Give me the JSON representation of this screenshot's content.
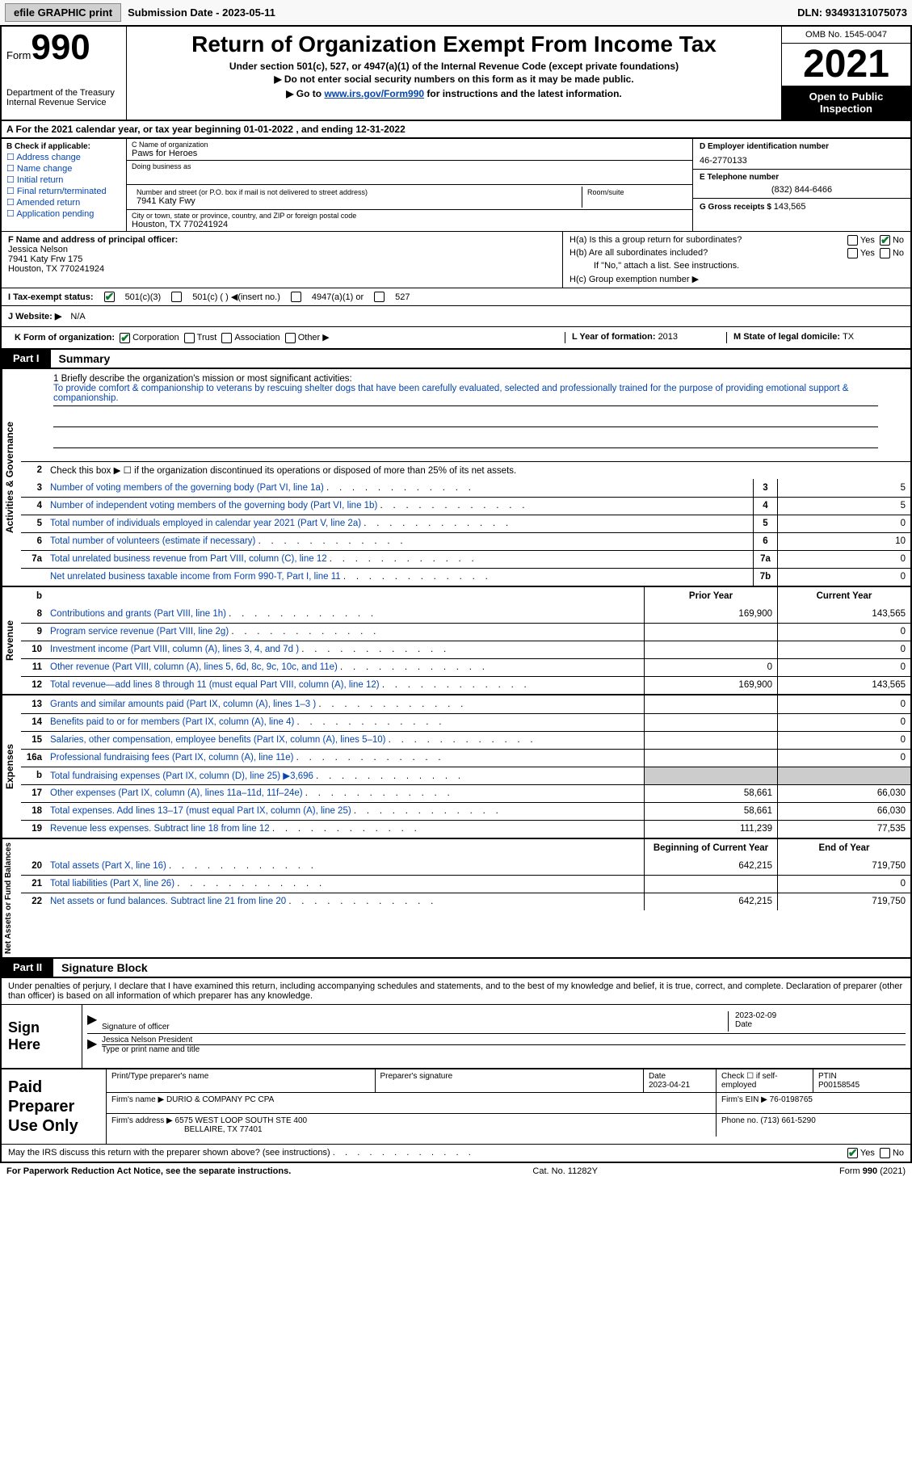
{
  "topbar": {
    "efile": "efile GRAPHIC print",
    "subdate_label": "Submission Date - ",
    "subdate": "2023-05-11",
    "dln_label": "DLN: ",
    "dln": "93493131075073"
  },
  "header": {
    "form_label": "Form",
    "form_num": "990",
    "dept": "Department of the Treasury Internal Revenue Service",
    "title": "Return of Organization Exempt From Income Tax",
    "sub1": "Under section 501(c), 527, or 4947(a)(1) of the Internal Revenue Code (except private foundations)",
    "sub2": "Do not enter social security numbers on this form as it may be made public.",
    "sub3_pre": "Go to ",
    "sub3_link": "www.irs.gov/Form990",
    "sub3_post": " for instructions and the latest information.",
    "omb": "OMB No. 1545-0047",
    "taxyear": "2021",
    "inspection": "Open to Public Inspection"
  },
  "yearline": "A For the 2021 calendar year, or tax year beginning 01-01-2022   , and ending 12-31-2022",
  "sectionB": {
    "lead": "B Check if applicable:",
    "items": [
      "Address change",
      "Name change",
      "Initial return",
      "Final return/terminated",
      "Amended return",
      "Application pending"
    ]
  },
  "sectionC": {
    "name_label": "C Name of organization",
    "name": "Paws for Heroes",
    "dba_label": "Doing business as",
    "addr_label": "Number and street (or P.O. box if mail is not delivered to street address)",
    "room_label": "Room/suite",
    "addr": "7941 Katy Fwy",
    "city_label": "City or town, state or province, country, and ZIP or foreign postal code",
    "city": "Houston, TX  770241924"
  },
  "sectionD": {
    "ein_label": "D Employer identification number",
    "ein": "46-2770133",
    "tel_label": "E Telephone number",
    "tel": "(832) 844-6466",
    "gross_label": "G Gross receipts $ ",
    "gross": "143,565"
  },
  "sectionF": {
    "label": "F Name and address of principal officer:",
    "name": "Jessica Nelson",
    "addr1": "7941 Katy Frw 175",
    "addr2": "Houston, TX  770241924"
  },
  "sectionH": {
    "ha": "H(a)  Is this a group return for subordinates?",
    "hb": "H(b)  Are all subordinates included?",
    "hb_note": "If \"No,\" attach a list. See instructions.",
    "hc": "H(c)  Group exemption number ▶",
    "yes": "Yes",
    "no": "No"
  },
  "rowI": {
    "label": "I  Tax-exempt status:",
    "o1": "501(c)(3)",
    "o2": "501(c) (  ) ◀(insert no.)",
    "o3": "4947(a)(1) or",
    "o4": "527"
  },
  "rowJ": {
    "label": "J  Website: ▶",
    "val": "N/A"
  },
  "rowK": {
    "label": "K Form of organization:",
    "opts": [
      "Corporation",
      "Trust",
      "Association",
      "Other ▶"
    ],
    "l_label": "L Year of formation: ",
    "l_val": "2013",
    "m_label": "M State of legal domicile: ",
    "m_val": "TX"
  },
  "part1": {
    "label": "Part I",
    "title": "Summary"
  },
  "mission": {
    "lead": "1   Briefly describe the organization's mission or most significant activities:",
    "text": "To provide comfort & companionship to veterans by rescuing shelter dogs that have been carefully evaluated, selected and professionally trained for the purpose of providing emotional support & companionship."
  },
  "line2": "Check this box ▶ ☐  if the organization discontinued its operations or disposed of more than 25% of its net assets.",
  "tabs": {
    "activities": "Activities & Governance",
    "revenue": "Revenue",
    "expenses": "Expenses",
    "netassets": "Net Assets or Fund Balances"
  },
  "lines_gov": [
    {
      "n": "3",
      "d": "Number of voting members of the governing body (Part VI, line 1a)",
      "box": "3",
      "val": "5"
    },
    {
      "n": "4",
      "d": "Number of independent voting members of the governing body (Part VI, line 1b)",
      "box": "4",
      "val": "5"
    },
    {
      "n": "5",
      "d": "Total number of individuals employed in calendar year 2021 (Part V, line 2a)",
      "box": "5",
      "val": "0"
    },
    {
      "n": "6",
      "d": "Total number of volunteers (estimate if necessary)",
      "box": "6",
      "val": "10"
    },
    {
      "n": "7a",
      "d": "Total unrelated business revenue from Part VIII, column (C), line 12",
      "box": "7a",
      "val": "0"
    },
    {
      "n": "",
      "d": "Net unrelated business taxable income from Form 990-T, Part I, line 11",
      "box": "7b",
      "val": "0"
    }
  ],
  "col_headers": {
    "prior": "Prior Year",
    "current": "Current Year"
  },
  "lines_rev": [
    {
      "n": "8",
      "d": "Contributions and grants (Part VIII, line 1h)",
      "p": "169,900",
      "c": "143,565"
    },
    {
      "n": "9",
      "d": "Program service revenue (Part VIII, line 2g)",
      "p": "",
      "c": "0"
    },
    {
      "n": "10",
      "d": "Investment income (Part VIII, column (A), lines 3, 4, and 7d )",
      "p": "",
      "c": "0"
    },
    {
      "n": "11",
      "d": "Other revenue (Part VIII, column (A), lines 5, 6d, 8c, 9c, 10c, and 11e)",
      "p": "0",
      "c": "0"
    },
    {
      "n": "12",
      "d": "Total revenue—add lines 8 through 11 (must equal Part VIII, column (A), line 12)",
      "p": "169,900",
      "c": "143,565"
    }
  ],
  "lines_exp": [
    {
      "n": "13",
      "d": "Grants and similar amounts paid (Part IX, column (A), lines 1–3 )",
      "p": "",
      "c": "0"
    },
    {
      "n": "14",
      "d": "Benefits paid to or for members (Part IX, column (A), line 4)",
      "p": "",
      "c": "0"
    },
    {
      "n": "15",
      "d": "Salaries, other compensation, employee benefits (Part IX, column (A), lines 5–10)",
      "p": "",
      "c": "0"
    },
    {
      "n": "16a",
      "d": "Professional fundraising fees (Part IX, column (A), line 11e)",
      "p": "",
      "c": "0"
    },
    {
      "n": "b",
      "d": "Total fundraising expenses (Part IX, column (D), line 25) ▶3,696",
      "p": "gray",
      "c": "gray"
    },
    {
      "n": "17",
      "d": "Other expenses (Part IX, column (A), lines 11a–11d, 11f–24e)",
      "p": "58,661",
      "c": "66,030"
    },
    {
      "n": "18",
      "d": "Total expenses. Add lines 13–17 (must equal Part IX, column (A), line 25)",
      "p": "58,661",
      "c": "66,030"
    },
    {
      "n": "19",
      "d": "Revenue less expenses. Subtract line 18 from line 12",
      "p": "111,239",
      "c": "77,535"
    }
  ],
  "col_headers2": {
    "prior": "Beginning of Current Year",
    "current": "End of Year"
  },
  "lines_net": [
    {
      "n": "20",
      "d": "Total assets (Part X, line 16)",
      "p": "642,215",
      "c": "719,750"
    },
    {
      "n": "21",
      "d": "Total liabilities (Part X, line 26)",
      "p": "",
      "c": "0"
    },
    {
      "n": "22",
      "d": "Net assets or fund balances. Subtract line 21 from line 20",
      "p": "642,215",
      "c": "719,750"
    }
  ],
  "part2": {
    "label": "Part II",
    "title": "Signature Block"
  },
  "sig": {
    "intro": "Under penalties of perjury, I declare that I have examined this return, including accompanying schedules and statements, and to the best of my knowledge and belief, it is true, correct, and complete. Declaration of preparer (other than officer) is based on all information of which preparer has any knowledge.",
    "sign_here": "Sign Here",
    "sig_officer": "Signature of officer",
    "sig_date": "2023-02-09",
    "date_label": "Date",
    "name": "Jessica Nelson  President",
    "name_label": "Type or print name and title"
  },
  "prep": {
    "label": "Paid Preparer Use Only",
    "print_label": "Print/Type preparer's name",
    "sig_label": "Preparer's signature",
    "date_label": "Date",
    "date": "2023-04-21",
    "check_label": "Check ☐ if self-employed",
    "ptin_label": "PTIN",
    "ptin": "P00158545",
    "firm_name_label": "Firm's name   ▶",
    "firm_name": "DURIO & COMPANY PC CPA",
    "firm_ein_label": "Firm's EIN ▶",
    "firm_ein": "76-0198765",
    "firm_addr_label": "Firm's address ▶",
    "firm_addr1": "6575 WEST LOOP SOUTH STE 400",
    "firm_addr2": "BELLAIRE, TX  77401",
    "phone_label": "Phone no. ",
    "phone": "(713) 661-5290"
  },
  "bottom": {
    "q": "May the IRS discuss this return with the preparer shown above? (see instructions)",
    "yes": "Yes",
    "no": "No"
  },
  "footer": {
    "left": "For Paperwork Reduction Act Notice, see the separate instructions.",
    "mid": "Cat. No. 11282Y",
    "right": "Form 990 (2021)"
  }
}
